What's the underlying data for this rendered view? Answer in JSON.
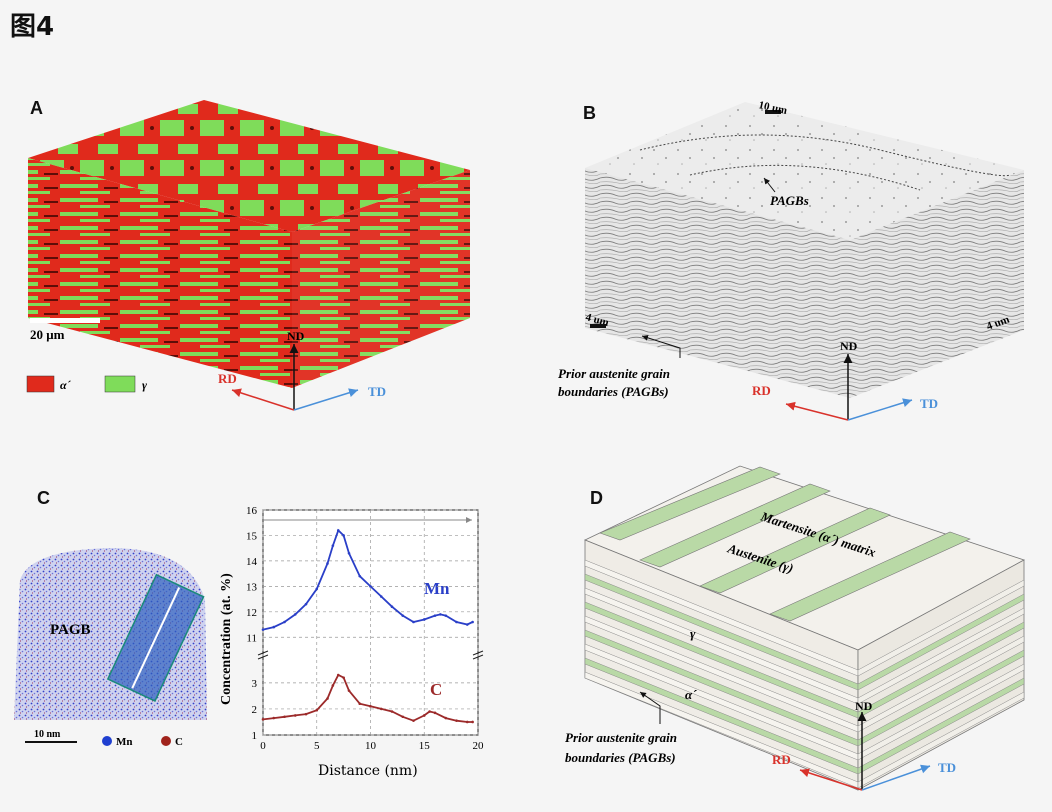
{
  "figure": {
    "title": "图4"
  },
  "panels": {
    "A": {
      "letter": "A",
      "scale_bar": "20 μm",
      "axes": {
        "nd": "ND",
        "rd": "RD",
        "td": "TD"
      },
      "legend": [
        {
          "symbol": "α´",
          "color": "#e02a1c"
        },
        {
          "symbol": "γ",
          "color": "#7fdc5a"
        }
      ]
    },
    "B": {
      "letter": "B",
      "scale_top": "10 um",
      "scale_left": "4 um",
      "scale_right": "4 um",
      "pagbs_label": "PAGBs",
      "prior_line1": "Prior austenite grain",
      "prior_line2": "boundaries (PAGBs)",
      "axes": {
        "nd": "ND",
        "rd": "RD",
        "td": "TD"
      }
    },
    "C": {
      "letter": "C",
      "pagb_label": "PAGB",
      "scale_bar": "10 nm",
      "legend": [
        {
          "label": "Mn",
          "color": "#1f3fd0"
        },
        {
          "label": "C",
          "color": "#a0231b"
        }
      ]
    },
    "D": {
      "letter": "D",
      "martensite_label": "Martensite (α´) matrix",
      "austenite_label": "Austenite (γ)",
      "gamma_label": "γ",
      "alpha_label": "α´",
      "prior_line1": "Prior austenite grain",
      "prior_line2": "boundaries (PAGBs)",
      "axes": {
        "nd": "ND",
        "rd": "RD",
        "td": "TD"
      }
    }
  },
  "chart_data": {
    "type": "line",
    "xlabel": "Distance (nm)",
    "ylabel": "Concentration (at. %)",
    "x_ticks": [
      "0",
      "5",
      "10",
      "15",
      "20"
    ],
    "y_ticks_upper": [
      "11",
      "12",
      "13",
      "14",
      "15",
      "16"
    ],
    "y_ticks_lower": [
      "1",
      "2",
      "3"
    ],
    "xlim": [
      0,
      20
    ],
    "ylim_upper": [
      10.5,
      16
    ],
    "ylim_lower": [
      1,
      3.8
    ],
    "series": [
      {
        "name": "Mn",
        "color": "#2a3fc8",
        "x": [
          0,
          1,
          2,
          3,
          4,
          5,
          6,
          6.5,
          7,
          7.5,
          8,
          9,
          10,
          11,
          12,
          13,
          14,
          15,
          16,
          16.5,
          17,
          18,
          19,
          19.5
        ],
        "values": [
          11.3,
          11.4,
          11.6,
          11.9,
          12.3,
          12.9,
          13.9,
          14.6,
          15.2,
          15.0,
          14.3,
          13.4,
          13.0,
          12.6,
          12.2,
          11.85,
          11.6,
          11.7,
          11.85,
          11.9,
          11.85,
          11.6,
          11.5,
          11.6
        ]
      },
      {
        "name": "C",
        "color": "#9c2a2a",
        "x": [
          0,
          1,
          2,
          3,
          4,
          5,
          6,
          6.5,
          7,
          7.5,
          8,
          9,
          10,
          11,
          12,
          13,
          14,
          15,
          15.5,
          16,
          17,
          18,
          19,
          19.5
        ],
        "values": [
          1.6,
          1.65,
          1.7,
          1.75,
          1.8,
          1.95,
          2.4,
          2.9,
          3.3,
          3.2,
          2.7,
          2.2,
          2.1,
          2.0,
          1.9,
          1.7,
          1.55,
          1.75,
          1.9,
          1.85,
          1.65,
          1.55,
          1.5,
          1.5
        ]
      }
    ]
  }
}
